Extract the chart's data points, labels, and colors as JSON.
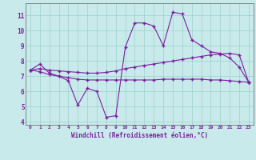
{
  "background_color": "#c8eaea",
  "line_color": "#7b1fa2",
  "grid_color": "#9ecece",
  "xlabel": "Windchill (Refroidissement éolien,°C)",
  "xlabel_fontsize": 5.5,
  "xtick_fontsize": 4.5,
  "ytick_fontsize": 5.5,
  "xlim": [
    -0.5,
    23.5
  ],
  "ylim": [
    3.8,
    11.8
  ],
  "yticks": [
    4,
    5,
    6,
    7,
    8,
    9,
    10,
    11
  ],
  "xticks": [
    0,
    1,
    2,
    3,
    4,
    5,
    6,
    7,
    8,
    9,
    10,
    11,
    12,
    13,
    14,
    15,
    16,
    17,
    18,
    19,
    20,
    21,
    22,
    23
  ],
  "line1_x": [
    0,
    1,
    2,
    3,
    4,
    5,
    6,
    7,
    8,
    9,
    10,
    11,
    12,
    13,
    14,
    15,
    16,
    17,
    18,
    19,
    20,
    21,
    22,
    23
  ],
  "line1_y": [
    7.4,
    7.8,
    7.2,
    7.0,
    6.7,
    5.1,
    6.2,
    6.0,
    4.3,
    4.4,
    8.9,
    10.5,
    10.5,
    10.3,
    9.0,
    11.2,
    11.1,
    9.4,
    9.0,
    8.6,
    8.5,
    8.2,
    7.6,
    6.6
  ],
  "line2_x": [
    0,
    1,
    2,
    3,
    4,
    5,
    6,
    7,
    8,
    9,
    10,
    11,
    12,
    13,
    14,
    15,
    16,
    17,
    18,
    19,
    20,
    21,
    22,
    23
  ],
  "line2_y": [
    7.4,
    7.5,
    7.4,
    7.35,
    7.3,
    7.25,
    7.2,
    7.2,
    7.25,
    7.35,
    7.5,
    7.6,
    7.7,
    7.8,
    7.9,
    8.0,
    8.1,
    8.2,
    8.3,
    8.4,
    8.45,
    8.5,
    8.4,
    6.6
  ],
  "line3_x": [
    0,
    1,
    2,
    3,
    4,
    5,
    6,
    7,
    8,
    9,
    10,
    11,
    12,
    13,
    14,
    15,
    16,
    17,
    18,
    19,
    20,
    21,
    22,
    23
  ],
  "line3_y": [
    7.4,
    7.3,
    7.1,
    7.0,
    6.9,
    6.8,
    6.75,
    6.75,
    6.75,
    6.75,
    6.75,
    6.75,
    6.75,
    6.75,
    6.8,
    6.8,
    6.8,
    6.8,
    6.8,
    6.75,
    6.75,
    6.7,
    6.65,
    6.6
  ]
}
